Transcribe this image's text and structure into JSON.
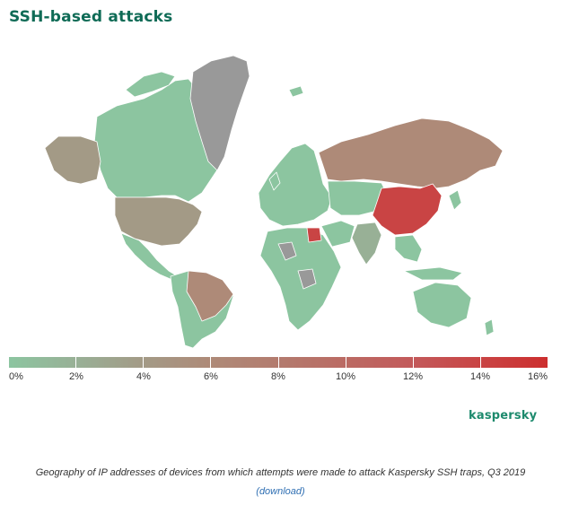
{
  "title": "SSH-based attacks",
  "brand": "kaspersky",
  "caption": "Geography of IP addresses of devices from which attempts were made to attack Kaspersky SSH traps, Q3 2019",
  "download_label": "(download)",
  "legend": {
    "labels": [
      "0%",
      "2%",
      "4%",
      "6%",
      "8%",
      "10%",
      "12%",
      "14%",
      "16%"
    ],
    "colors": [
      "#8cc5a0",
      "#98b096",
      "#a39a86",
      "#ae8a78",
      "#b37b6e",
      "#bb6a63",
      "#c3595a",
      "#c94444",
      "#cc2e2e"
    ]
  },
  "regions": {
    "greenland": "#999999",
    "canada": "#8cc5a0",
    "alaska": "#a39a86",
    "usa": "#a39a86",
    "mexico_central": "#8cc5a0",
    "south_america": "#8cc5a0",
    "brazil": "#ae8a78",
    "europe": "#8cc5a0",
    "russia": "#ae8a78",
    "central_asia": "#8cc5a0",
    "india": "#98b096",
    "china": "#c94444",
    "africa": "#8cc5a0",
    "africa_gray": "#999999",
    "egypt": "#c94444",
    "southeast_asia": "#8cc5a0",
    "australia": "#8cc5a0"
  }
}
